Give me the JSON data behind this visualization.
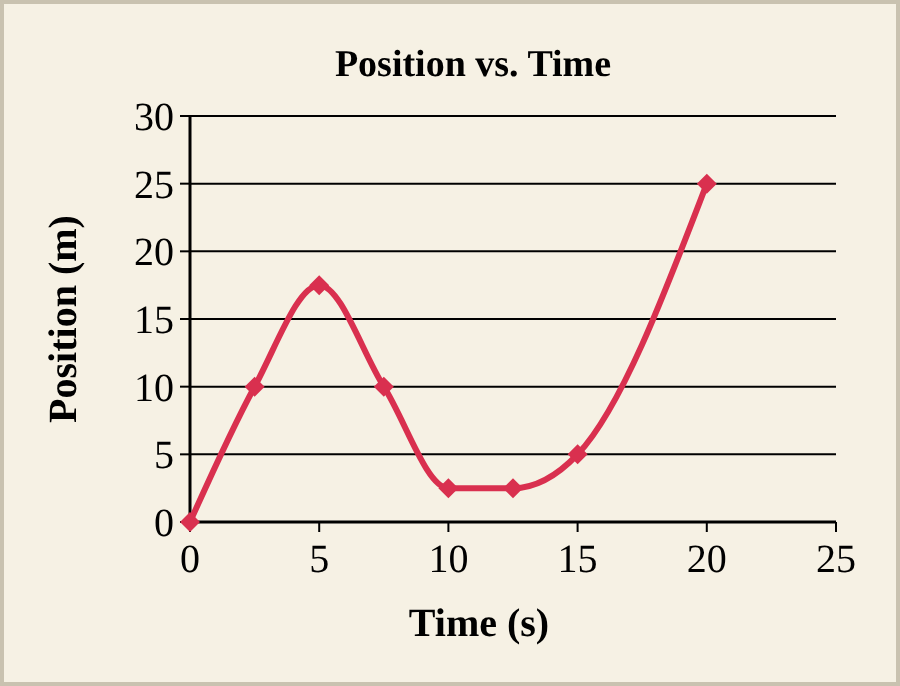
{
  "chart_data": {
    "type": "line",
    "title": "Position vs. Time",
    "xlabel": "Time (s)",
    "ylabel": "Position (m)",
    "x": [
      0,
      2.5,
      5,
      7.5,
      10,
      12.5,
      15,
      20
    ],
    "series": [
      {
        "color": "#d9304f",
        "values": [
          0,
          10,
          17.5,
          10,
          2.5,
          2.5,
          5,
          25
        ]
      }
    ],
    "xlim": [
      0,
      25
    ],
    "xticks": [
      0,
      5,
      10,
      15,
      20,
      25
    ],
    "ylim": [
      0,
      30
    ],
    "yticks": [
      0,
      5,
      10,
      15,
      20,
      25,
      30
    ],
    "grid": "y",
    "marker": "diamond",
    "line_style": "solid"
  }
}
